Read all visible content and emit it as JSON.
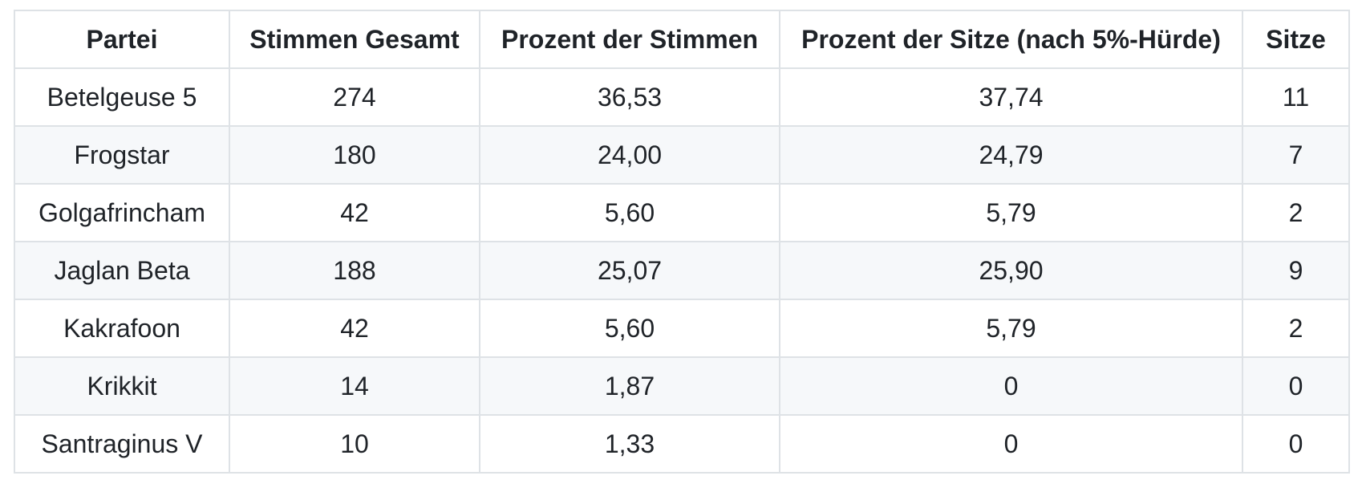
{
  "chart_data": {
    "type": "table",
    "title": "",
    "columns": [
      "Partei",
      "Stimmen Gesamt",
      "Prozent der Stimmen",
      "Prozent der Sitze (nach 5%-Hürde)",
      "Sitze"
    ],
    "rows": [
      [
        "Betelgeuse 5",
        "274",
        "36,53",
        "37,74",
        "11"
      ],
      [
        "Frogstar",
        "180",
        "24,00",
        "24,79",
        "7"
      ],
      [
        "Golgafrincham",
        "42",
        "5,60",
        "5,79",
        "2"
      ],
      [
        "Jaglan Beta",
        "188",
        "25,07",
        "25,90",
        "9"
      ],
      [
        "Kakrafoon",
        "42",
        "5,60",
        "5,79",
        "2"
      ],
      [
        "Krikkit",
        "14",
        "1,87",
        "0",
        "0"
      ],
      [
        "Santraginus V",
        "10",
        "1,33",
        "0",
        "0"
      ]
    ]
  },
  "colors": {
    "background": "#ffffff",
    "stripe": "#f6f8fa",
    "border": "#dee2e6",
    "text": "#1f2328"
  }
}
